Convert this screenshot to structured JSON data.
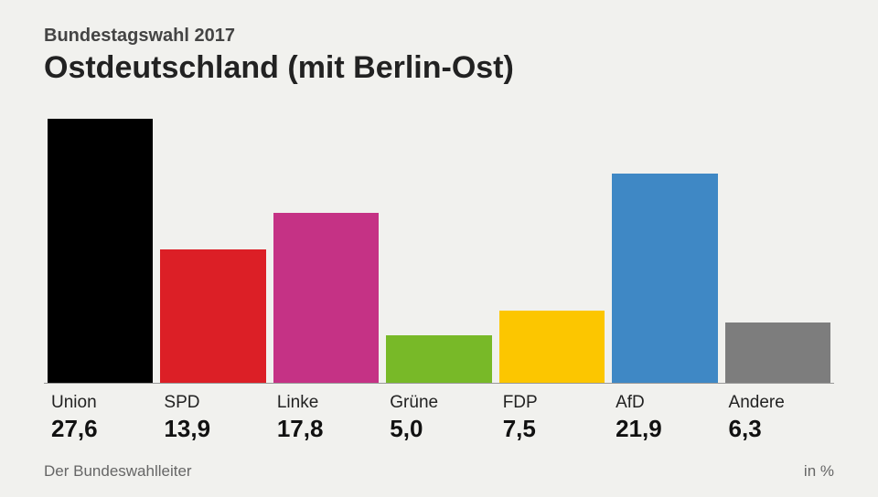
{
  "header": {
    "subtitle": "Bundestagswahl 2017",
    "title": "Ostdeutschland (mit Berlin-Ost)"
  },
  "chart": {
    "type": "bar",
    "y_max": 27.6,
    "background_color": "#f1f1ee",
    "axis_color": "#999999",
    "bars": [
      {
        "label": "Union",
        "value": 27.6,
        "value_display": "27,6",
        "color": "#000000"
      },
      {
        "label": "SPD",
        "value": 13.9,
        "value_display": "13,9",
        "color": "#dc1f26"
      },
      {
        "label": "Linke",
        "value": 17.8,
        "value_display": "17,8",
        "color": "#c53285"
      },
      {
        "label": "Grüne",
        "value": 5.0,
        "value_display": "5,0",
        "color": "#78b928"
      },
      {
        "label": "FDP",
        "value": 7.5,
        "value_display": "7,5",
        "color": "#fcc600"
      },
      {
        "label": "AfD",
        "value": 21.9,
        "value_display": "21,9",
        "color": "#3f88c5"
      },
      {
        "label": "Andere",
        "value": 6.3,
        "value_display": "6,3",
        "color": "#7d7d7d"
      }
    ],
    "label_fontsize": 19,
    "value_fontsize": 26,
    "title_fontsize": 34,
    "subtitle_fontsize": 20
  },
  "footer": {
    "source": "Der Bundeswahlleiter",
    "unit": "in %"
  }
}
